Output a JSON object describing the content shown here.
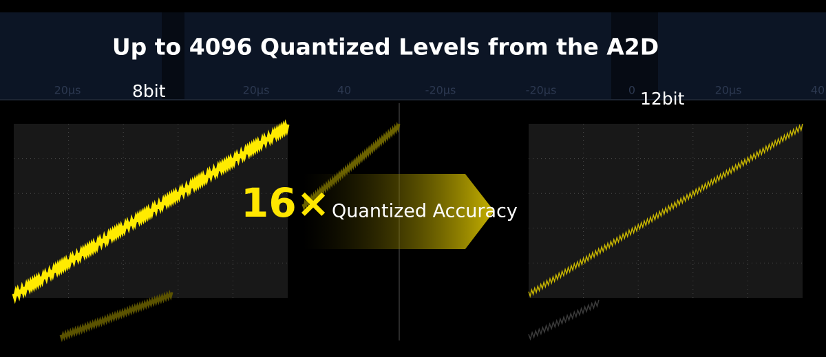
{
  "header": {
    "title": "Up to 4096 Quantized Levels from the A2D"
  },
  "left_panel": {
    "label": "8bit"
  },
  "right_panel": {
    "label": "12bit"
  },
  "arrow": {
    "multiplier": "16×",
    "text": "Quantized Accuracy"
  },
  "background_labels": [
    "20μs",
    "20μs",
    "40",
    "-20μs",
    "-20μs",
    "0",
    "20μs",
    "40"
  ]
}
